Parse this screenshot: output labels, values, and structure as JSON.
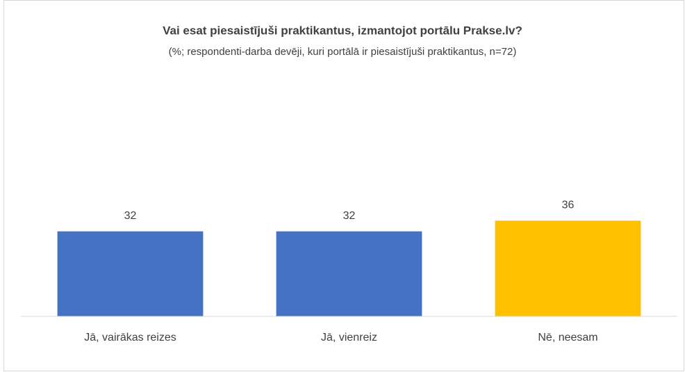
{
  "chart_data": {
    "type": "bar",
    "title": "Vai esat piesaistījuši praktikantus, izmantojot portālu Prakse.lv?",
    "subtitle": "(%; respondenti-darba devēji, kuri portālā ir piesaistījuši praktikantus, n=72)",
    "categories": [
      "Jā, vairākas reizes",
      "Jā, vienreiz",
      "Nē, neesam"
    ],
    "values": [
      32,
      32,
      36
    ],
    "colors": [
      "#4472c4",
      "#4472c4",
      "#ffc000"
    ],
    "ylim": [
      0,
      90
    ]
  }
}
